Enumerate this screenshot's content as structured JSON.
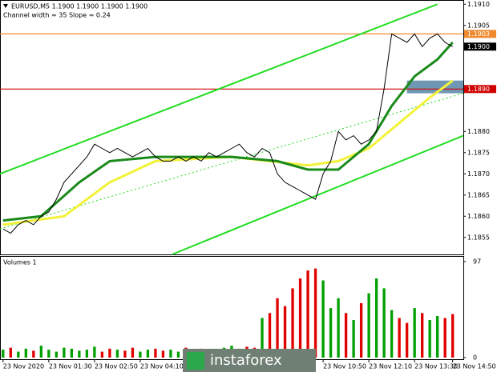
{
  "chart_data": {
    "type": "line",
    "title": "EURUSD,M5  1.1900 1.1900 1.1900 1.1900",
    "subtitle": "Channel width = 35 Slope = 0.24",
    "categories": [
      "23 Nov 2020",
      null,
      null,
      null,
      null,
      null,
      "23 Nov 01:30",
      null,
      null,
      null,
      null,
      null,
      "23 Nov 02:50",
      null,
      null,
      null,
      null,
      null,
      "23 Nov 04:10",
      null,
      null,
      null,
      null,
      null,
      null,
      null,
      null,
      null,
      null,
      null,
      null,
      null,
      null,
      null,
      null,
      null,
      null,
      null,
      null,
      null,
      null,
      null,
      "23 Nov 10:50",
      null,
      null,
      null,
      null,
      null,
      "23 Nov 12:10",
      null,
      null,
      null,
      null,
      null,
      "23 Nov 13:30",
      null,
      null,
      null,
      null,
      "23 Nov 14:50"
    ],
    "xlim": [
      -0.4,
      60.4
    ],
    "ylim": [
      1.1851,
      1.1911
    ],
    "yticks": [
      {
        "value": 1.1855,
        "label": "1.1855"
      },
      {
        "value": 1.186,
        "label": "1.1860"
      },
      {
        "value": 1.1865,
        "label": "1.1865"
      },
      {
        "value": 1.187,
        "label": "1.1870"
      },
      {
        "value": 1.1875,
        "label": "1.1875"
      },
      {
        "value": 1.188,
        "label": "1.1880"
      },
      {
        "value": 1.1905,
        "label": "1.1905"
      },
      {
        "value": 1.191,
        "label": "1.1910"
      }
    ],
    "series": [
      {
        "color": "#000000",
        "width": 1,
        "values": [
          1.1857,
          1.1856,
          1.1858,
          1.1859,
          1.1858,
          1.186,
          1.1861,
          1.1864,
          1.1868,
          1.187,
          1.1872,
          1.1874,
          1.1877,
          1.1876,
          1.1875,
          1.1876,
          1.1875,
          1.1874,
          1.1875,
          1.1876,
          1.1874,
          1.1873,
          1.1873,
          1.1874,
          1.1873,
          1.1874,
          1.1873,
          1.1875,
          1.1874,
          1.1875,
          1.1876,
          1.1877,
          1.1875,
          1.1874,
          1.1876,
          1.1875,
          1.187,
          1.1868,
          1.1867,
          1.1866,
          1.1865,
          1.1864,
          1.187,
          1.1873,
          1.188,
          1.1878,
          1.1879,
          1.1877,
          1.1878,
          1.188,
          1.189,
          1.1903,
          1.1902,
          1.1901,
          1.1903,
          1.19,
          1.1902,
          1.1903,
          1.1901,
          1.19
        ]
      },
      {
        "color": "#1a8a1a",
        "width": 3,
        "x": [
          0,
          5,
          10,
          14,
          20,
          30,
          36,
          40,
          44,
          48,
          51,
          54,
          57,
          59
        ],
        "values": [
          1.1859,
          1.186,
          1.1868,
          1.1873,
          1.1874,
          1.1874,
          1.1873,
          1.1871,
          1.1871,
          1.1877,
          1.1886,
          1.1893,
          1.1897,
          1.1901
        ]
      },
      {
        "color": "#f2f23a",
        "width": 3,
        "x": [
          0,
          8,
          14,
          20,
          30,
          40,
          44,
          48,
          52,
          56,
          59
        ],
        "values": [
          1.1858,
          1.186,
          1.1868,
          1.1873,
          1.1874,
          1.1872,
          1.1873,
          1.1876,
          1.1882,
          1.1888,
          1.1892
        ]
      }
    ],
    "channels": [
      {
        "color": "#22dd22",
        "style": "solid",
        "x": [
          -0.4,
          57
        ],
        "values": [
          1.187,
          1.191
        ]
      },
      {
        "color": "#22dd22",
        "style": "solid",
        "x": [
          22.2,
          60.4
        ],
        "values": [
          1.1851,
          1.1879
        ]
      },
      {
        "color": "#22dd22",
        "style": "dotted",
        "x": [
          -0.4,
          60.4
        ],
        "values": [
          1.1857,
          1.1889
        ]
      }
    ],
    "levels": [
      {
        "value": 1.1903,
        "label": "1.1903",
        "color": "#f08a30"
      },
      {
        "value": 1.19,
        "label": "1.1900",
        "color": "#000000"
      },
      {
        "value": 1.189,
        "label": "1.1890",
        "color": "#d00000"
      }
    ],
    "zone": {
      "ylim": [
        1.1889,
        1.1892
      ],
      "xlim": [
        53,
        60.4
      ],
      "color": "#6f97b3"
    },
    "volumes": {
      "title": "Volumes 1",
      "ylim": [
        0,
        97
      ],
      "yticks": [
        0,
        97
      ],
      "up_color": "#00a000",
      "down_color": "#e00000",
      "values": [
        8,
        10,
        6,
        9,
        7,
        12,
        8,
        6,
        10,
        9,
        7,
        8,
        11,
        6,
        9,
        8,
        7,
        10,
        6,
        8,
        9,
        7,
        8,
        6,
        10,
        8,
        9,
        7,
        8,
        10,
        12,
        9,
        11,
        10,
        40,
        45,
        60,
        52,
        70,
        80,
        88,
        90,
        78,
        50,
        60,
        45,
        38,
        55,
        65,
        80,
        70,
        48,
        40,
        35,
        50,
        45,
        38,
        42,
        40,
        44
      ]
    },
    "watermark": "instaforex"
  }
}
